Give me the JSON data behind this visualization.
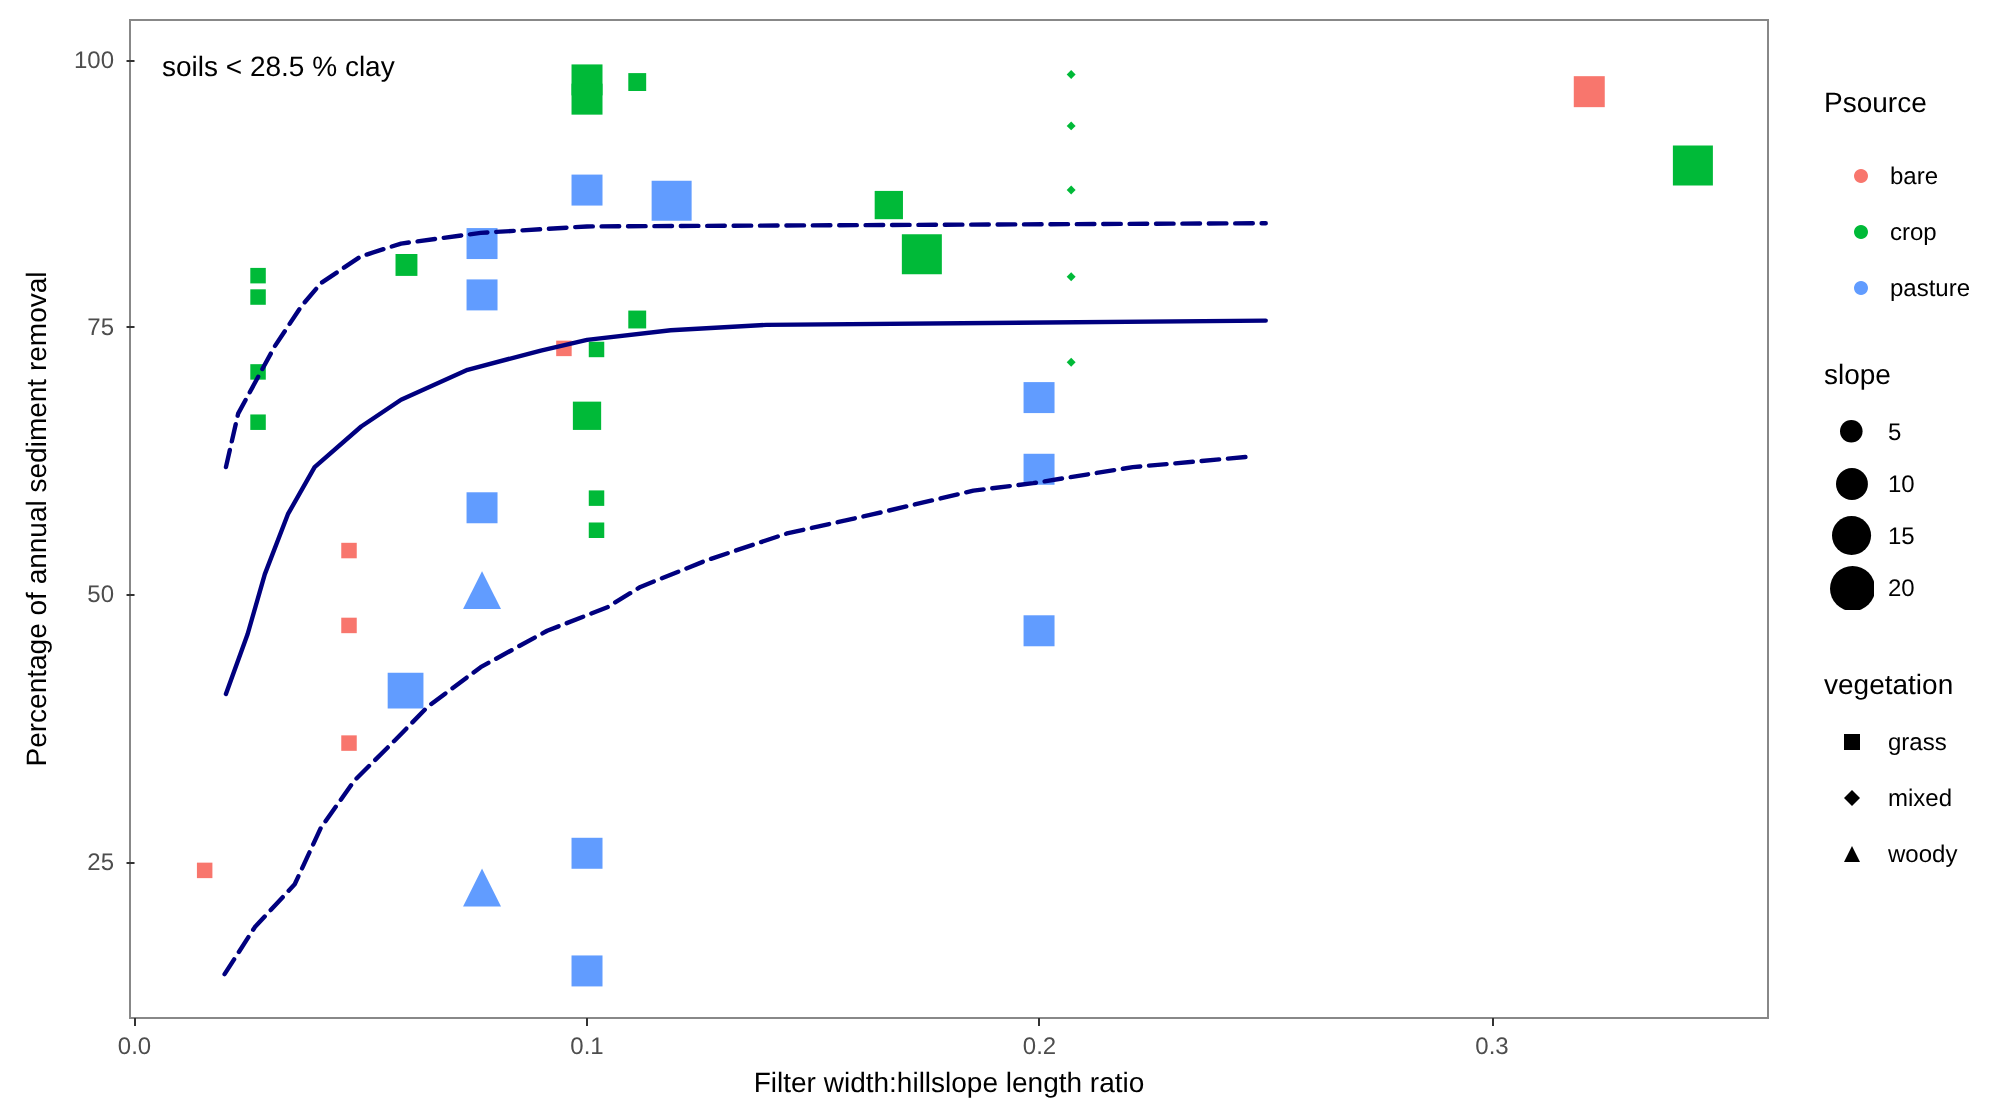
{
  "chart_data": {
    "type": "scatter",
    "xlabel": "Filter width:hillslope length ratio",
    "ylabel": "Percentage of annual sediment removal",
    "xlim": [
      -0.001,
      0.361
    ],
    "xticks": [
      {
        "value": 0,
        "label": "0.0"
      },
      {
        "value": 0.1,
        "label": "0.1"
      },
      {
        "value": 0.2,
        "label": "0.2"
      },
      {
        "value": 0.3,
        "label": "0.3"
      }
    ],
    "ylim": [
      10.4,
      103.7
    ],
    "yticks": [
      25,
      50,
      75,
      100
    ],
    "grid": false,
    "legend": "right",
    "legend_title": "Psource",
    "annotations": [
      "soils < 28.5 % clay",
      "slope",
      "vegetation",
      "grass",
      "mixed",
      "woody"
    ],
    "size_legend": [
      5,
      10,
      15,
      20
    ],
    "series": [
      {
        "name": "bare",
        "color": "#f8766d",
        "marker": "square",
        "x": [
          0.0155,
          0.0474,
          0.0474,
          0.0474,
          0.0949,
          0.3215
        ],
        "values": [
          24.2,
          54.1,
          47.1,
          36.1,
          73.0,
          97.0
        ],
        "sizes": [
          3,
          3,
          3,
          3,
          3,
          12
        ]
      },
      {
        "name": "crop",
        "color": "#00ba38",
        "marker": "square",
        "x": [
          0.0273,
          0.0273,
          0.0273,
          0.0273,
          0.0601,
          0.1,
          0.1,
          0.1,
          0.1021,
          0.1021,
          0.1021,
          0.1111,
          0.1111,
          0.1667,
          0.174,
          0.3444
        ],
        "values": [
          79.8,
          77.8,
          70.8,
          66.1,
          80.8,
          98.1,
          96.3,
          66.7,
          72.9,
          59.0,
          56.0,
          97.9,
          75.7,
          86.4,
          81.8,
          90.1
        ],
        "sizes": [
          3,
          3,
          3,
          3,
          6,
          12,
          12,
          10,
          3,
          3,
          3,
          4,
          4,
          10,
          20,
          20
        ]
      },
      {
        "color": "#00ba38",
        "marker": "diamond",
        "x": [
          0.207,
          0.207,
          0.207,
          0.207,
          0.207
        ],
        "values": [
          98.6,
          93.8,
          87.8,
          79.7,
          71.7
        ],
        "sizes": [
          0.5,
          0.5,
          0.5,
          0.5,
          0.5
        ]
      },
      {
        "name": "pasture",
        "color": "#619cff",
        "marker": "square",
        "x": [
          0.0599,
          0.0768,
          0.0768,
          0.0768,
          0.1,
          0.1,
          0.1,
          0.1187,
          0.1999,
          0.1999,
          0.1999
        ],
        "values": [
          41.0,
          82.8,
          78.0,
          58.1,
          87.8,
          25.8,
          14.8,
          86.8,
          68.4,
          61.7,
          46.6
        ],
        "sizes": [
          16,
          12,
          12,
          12,
          12,
          12,
          12,
          20,
          12,
          12,
          12
        ]
      },
      {
        "color": "#619cff",
        "marker": "triangle",
        "x": [
          0.0768,
          0.0768
        ],
        "values": [
          50.4,
          22.6
        ],
        "sizes": [
          9,
          9
        ]
      },
      {
        "type": "line",
        "color": "#00007f",
        "marker": "none",
        "line_style": "solid",
        "x": [
          0.0202,
          0.025,
          0.0288,
          0.0339,
          0.0398,
          0.0501,
          0.0589,
          0.0736,
          0.0898,
          0.1,
          0.1185,
          0.1396,
          0.25
        ],
        "values": [
          40.7,
          46.3,
          51.9,
          57.5,
          61.9,
          65.7,
          68.2,
          71.0,
          72.8,
          73.8,
          74.7,
          75.2,
          75.6
        ]
      },
      {
        "type": "line",
        "color": "#00007f",
        "marker": "none",
        "line_style": "dashed",
        "x": [
          0.0202,
          0.0229,
          0.031,
          0.0368,
          0.0412,
          0.05,
          0.0589,
          0.0765,
          0.1,
          0.25
        ],
        "values": [
          61.9,
          66.9,
          73.2,
          76.9,
          79.1,
          81.6,
          82.8,
          83.8,
          84.4,
          84.7
        ]
      },
      {
        "type": "line",
        "color": "#00007f",
        "marker": "none",
        "line_style": "dashed",
        "x": [
          0.0199,
          0.0266,
          0.0354,
          0.0412,
          0.0486,
          0.0574,
          0.0648,
          0.0765,
          0.0912,
          0.1045,
          0.1118,
          0.1265,
          0.1442,
          0.1633,
          0.1854,
          0.1986,
          0.2206,
          0.2471
        ],
        "values": [
          14.5,
          18.9,
          22.9,
          28.2,
          32.6,
          36.3,
          39.5,
          43.2,
          46.6,
          48.8,
          50.7,
          53.2,
          55.7,
          57.5,
          59.7,
          60.4,
          61.9,
          62.9
        ]
      }
    ]
  }
}
